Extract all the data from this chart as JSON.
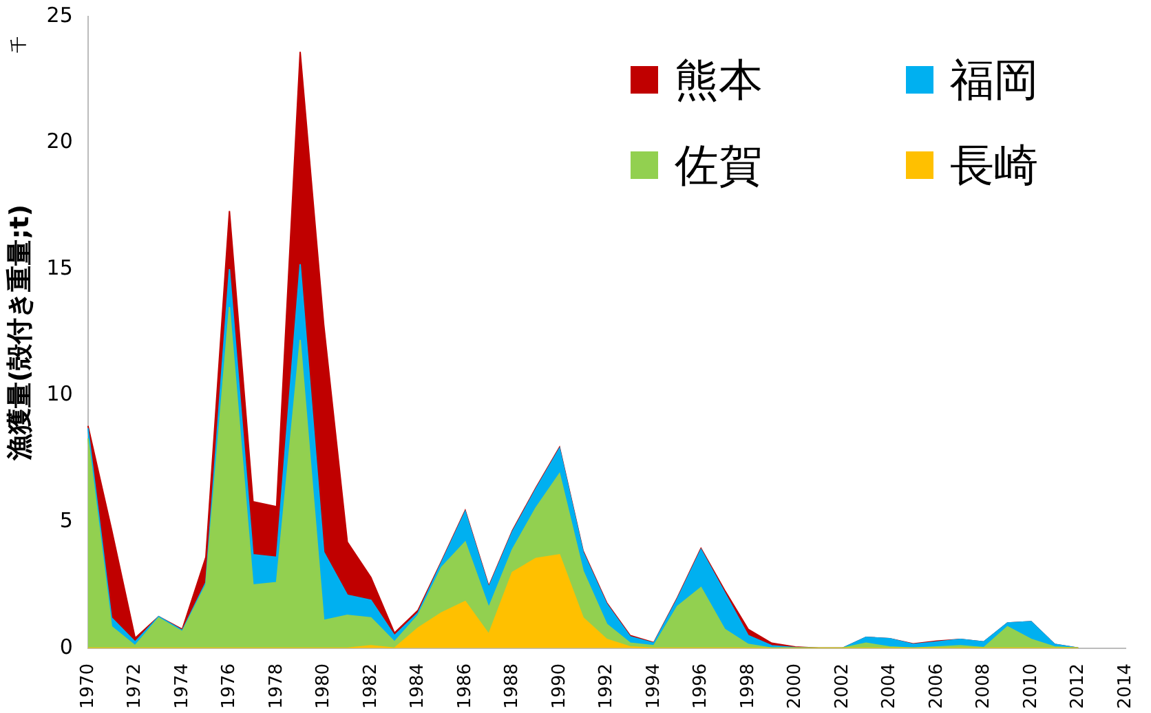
{
  "chart_data": {
    "type": "area",
    "stacked": true,
    "ylabel": "漁獲量(殻付き重量;t)",
    "annotations": [
      "千"
    ],
    "categories": [
      "1970",
      null,
      "1972",
      null,
      "1974",
      null,
      "1976",
      null,
      "1978",
      null,
      "1980",
      null,
      "1982",
      null,
      "1984",
      null,
      "1986",
      null,
      "1988",
      null,
      "1990",
      null,
      "1992",
      null,
      "1994",
      null,
      "1996",
      null,
      "1998",
      null,
      "2000",
      null,
      "2002",
      null,
      "2004",
      null,
      "2006",
      null,
      "2008",
      null,
      "2010",
      null,
      "2012",
      null,
      "2014"
    ],
    "series": [
      {
        "name": "長崎",
        "color": "#ffc000",
        "values": [
          0,
          0,
          0,
          0,
          0,
          0,
          0,
          0,
          0,
          0,
          0,
          0,
          0.1,
          0,
          0.8,
          1.4,
          1.85,
          0.55,
          3.0,
          3.55,
          3.7,
          1.2,
          0.35,
          0.05,
          0,
          0,
          0,
          0,
          0,
          0,
          0,
          0,
          0,
          0,
          0,
          0,
          0,
          0,
          0,
          0,
          0,
          0,
          0,
          null,
          null
        ]
      },
      {
        "name": "佐賀",
        "color": "#92d050",
        "values": [
          8.3,
          0.85,
          0.1,
          1.2,
          0.65,
          2.5,
          13.5,
          2.5,
          2.6,
          12.2,
          1.1,
          1.3,
          1.1,
          0.25,
          0.5,
          1.8,
          2.35,
          1.05,
          0.9,
          2.0,
          3.2,
          1.85,
          0.6,
          0.15,
          0.1,
          1.65,
          2.4,
          0.75,
          0.15,
          0,
          0,
          0,
          0,
          0.2,
          0.05,
          0,
          0.05,
          0.1,
          0.02,
          0.85,
          0.35,
          0.05,
          0,
          null,
          null
        ]
      },
      {
        "name": "福岡",
        "color": "#00b0f0",
        "values": [
          0.4,
          0.35,
          0.15,
          0.05,
          0.05,
          0.1,
          1.5,
          1.2,
          1.0,
          3.0,
          2.7,
          0.8,
          0.7,
          0.25,
          0.1,
          0.2,
          1.2,
          0.8,
          0.7,
          0.75,
          1.0,
          0.75,
          0.8,
          0.25,
          0.1,
          0.3,
          1.5,
          1.45,
          0.35,
          0.1,
          0.02,
          0,
          0,
          0.23,
          0.33,
          0.15,
          0.2,
          0.25,
          0.23,
          0.15,
          0.7,
          0.1,
          0,
          null,
          null
        ]
      },
      {
        "name": "熊本",
        "color": "#c00000",
        "values": [
          0.1,
          3.5,
          0.15,
          0,
          0.05,
          1.0,
          2.3,
          2.1,
          2.0,
          8.4,
          9.0,
          2.1,
          0.9,
          0.1,
          0.1,
          0.05,
          0.05,
          0.05,
          0.05,
          0.05,
          0.05,
          0.05,
          0.05,
          0.05,
          0.02,
          0.05,
          0.05,
          0.1,
          0.25,
          0.1,
          0.03,
          0,
          0,
          0,
          0,
          0.02,
          0.03,
          0,
          0,
          0,
          0,
          0,
          0,
          null,
          null
        ]
      }
    ],
    "ylim": [
      0,
      25
    ],
    "yticks": [
      0,
      5,
      10,
      15,
      20,
      25
    ],
    "grid": false,
    "legend": "top right"
  }
}
